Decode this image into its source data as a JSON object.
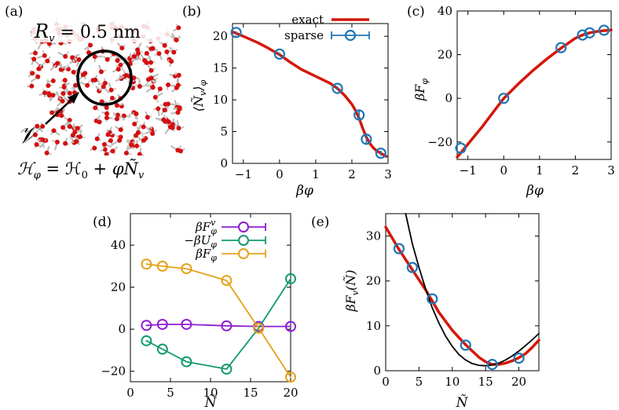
{
  "colors": {
    "exact": "#d4170b",
    "sparse": "#1f77b4",
    "purple": "#8e1fcf",
    "green": "#119a6e",
    "orange": "#e3a21a",
    "black": "#000000"
  },
  "panel_labels": [
    "(a)",
    "(b)",
    "(c)",
    "(d)",
    "(e)"
  ],
  "panel_a": {
    "radius_label": "R_v = 0.5 nm",
    "volume_label": "v",
    "hamiltonian_label": "H_φ = H_0 + φÑ_v"
  },
  "chart_data": [
    {
      "id": "b",
      "type": "line",
      "title": "",
      "xlabel": "βφ",
      "ylabel": "⟨Ñ_v⟩_φ",
      "xlim": [
        -1.3,
        3.0
      ],
      "ylim": [
        0,
        22
      ],
      "xticks": [
        -1,
        0,
        1,
        2,
        3
      ],
      "xtick_labels": [
        "−1",
        "0",
        "1",
        "2",
        "3"
      ],
      "yticks": [
        0,
        5,
        10,
        15,
        20
      ],
      "ytick_labels": [
        "0",
        "5",
        "10",
        "15",
        "20"
      ],
      "legend": [
        "exact",
        "sparse"
      ],
      "legend_position": "top-right",
      "series": [
        {
          "name": "exact",
          "style": "line",
          "color": "#d4170b",
          "x": [
            -1.3,
            -1.0,
            -0.6,
            -0.3,
            0.0,
            0.3,
            0.6,
            1.0,
            1.4,
            1.6,
            1.8,
            2.0,
            2.1,
            2.2,
            2.3,
            2.4,
            2.5,
            2.6,
            2.7,
            2.8,
            2.95
          ],
          "y": [
            20.7,
            20.0,
            19.0,
            18.1,
            17.1,
            15.9,
            14.8,
            13.7,
            12.6,
            11.8,
            10.7,
            9.3,
            8.3,
            7.1,
            5.5,
            4.1,
            3.1,
            2.4,
            1.9,
            1.6,
            1.1
          ]
        },
        {
          "name": "sparse",
          "style": "markers",
          "color": "#1f77b4",
          "x": [
            -1.2,
            0.0,
            1.6,
            2.2,
            2.4,
            2.8
          ],
          "y": [
            20.6,
            17.2,
            11.8,
            7.6,
            3.8,
            1.6
          ],
          "yerr": [
            0.2,
            0.2,
            0.3,
            0.9,
            0.9,
            0.4
          ]
        }
      ]
    },
    {
      "id": "c",
      "type": "line",
      "title": "",
      "xlabel": "βφ",
      "ylabel": "βF_φ",
      "xlim": [
        -1.3,
        3.0
      ],
      "ylim": [
        -28,
        40
      ],
      "xticks": [
        -1,
        0,
        1,
        2,
        3
      ],
      "xtick_labels": [
        "−1",
        "0",
        "1",
        "2",
        "3"
      ],
      "yticks": [
        -20,
        0,
        20,
        40
      ],
      "ytick_labels": [
        "−20",
        "0",
        "20",
        "40"
      ],
      "series": [
        {
          "name": "exact",
          "style": "line",
          "color": "#d4170b",
          "x": [
            -1.3,
            -1.0,
            -0.6,
            -0.3,
            0.0,
            0.4,
            0.8,
            1.2,
            1.6,
            2.0,
            2.2,
            2.4,
            2.6,
            2.8,
            3.0
          ],
          "y": [
            -27.0,
            -21.0,
            -13.0,
            -6.5,
            0.0,
            6.5,
            12.5,
            18.0,
            23.0,
            27.5,
            29.0,
            30.0,
            30.6,
            31.0,
            31.3
          ]
        },
        {
          "name": "sparse",
          "style": "markers",
          "color": "#1f77b4",
          "x": [
            -1.2,
            0.0,
            1.6,
            2.2,
            2.4,
            2.8
          ],
          "y": [
            -22.8,
            0.0,
            23.2,
            29.0,
            30.0,
            31.2
          ]
        }
      ]
    },
    {
      "id": "d",
      "type": "line",
      "title": "",
      "xlabel": "Ñ",
      "ylabel": "",
      "xlim": [
        0,
        20
      ],
      "ylim": [
        -25,
        55
      ],
      "xticks": [
        0,
        5,
        10,
        15,
        20
      ],
      "xtick_labels": [
        "0",
        "5",
        "10",
        "15",
        "20"
      ],
      "yticks": [
        -20,
        0,
        20,
        40
      ],
      "ytick_labels": [
        "−20",
        "0",
        "20",
        "40"
      ],
      "legend": [
        "βF_v^φ",
        "−βU_φ",
        "βF_φ"
      ],
      "legend_position": "top-right",
      "series": [
        {
          "name": "βF_v^φ",
          "color": "#8e1fcf",
          "x": [
            2,
            4,
            7,
            12,
            16,
            20
          ],
          "y": [
            1.8,
            2.3,
            2.3,
            1.6,
            1.3,
            1.3
          ]
        },
        {
          "name": "−βU_φ",
          "color": "#119a6e",
          "x": [
            2,
            4,
            7,
            12,
            16,
            20
          ],
          "y": [
            -5.5,
            -9.5,
            -15.5,
            -19.0,
            0.5,
            24.0
          ]
        },
        {
          "name": "βF_φ",
          "color": "#e3a21a",
          "x": [
            2,
            4,
            7,
            12,
            16,
            20
          ],
          "y": [
            31.0,
            30.0,
            28.8,
            23.2,
            0.5,
            -22.8
          ]
        }
      ]
    },
    {
      "id": "e",
      "type": "line",
      "title": "",
      "xlabel": "Ñ",
      "ylabel": "βF_v(Ñ)",
      "xlim": [
        0,
        23
      ],
      "ylim": [
        0,
        35
      ],
      "xticks": [
        0,
        5,
        10,
        15,
        20
      ],
      "xtick_labels": [
        "0",
        "5",
        "10",
        "15",
        "20"
      ],
      "yticks": [
        0,
        10,
        20,
        30
      ],
      "ytick_labels": [
        "0",
        "10",
        "20",
        "30"
      ],
      "series": [
        {
          "name": "exact",
          "style": "line",
          "color": "#d4170b",
          "x": [
            0,
            2,
            4,
            6,
            8,
            10,
            12,
            14,
            15,
            16,
            17,
            18,
            19,
            20,
            21,
            22,
            23
          ],
          "y": [
            32.0,
            27.0,
            22.5,
            18.0,
            13.0,
            9.0,
            5.8,
            3.0,
            2.0,
            1.4,
            1.4,
            1.7,
            2.2,
            2.9,
            3.8,
            5.2,
            6.8
          ]
        },
        {
          "name": "gaussian",
          "style": "line",
          "color": "#000000",
          "x": [
            3.0,
            4,
            5,
            6,
            7,
            8,
            9,
            10,
            11,
            12,
            13,
            14,
            15,
            16,
            17,
            18,
            19,
            20,
            21,
            22,
            23
          ],
          "y": [
            35.0,
            28.3,
            23.0,
            18.2,
            14.0,
            10.6,
            7.7,
            5.4,
            3.6,
            2.4,
            1.6,
            1.2,
            1.1,
            1.3,
            1.7,
            2.4,
            3.3,
            4.4,
            5.6,
            6.9,
            8.3
          ]
        },
        {
          "name": "sparse",
          "style": "markers",
          "color": "#1f77b4",
          "x": [
            2,
            4,
            7,
            12,
            16,
            20
          ],
          "y": [
            27.2,
            23.0,
            16.0,
            5.7,
            1.4,
            2.8
          ]
        }
      ]
    }
  ]
}
